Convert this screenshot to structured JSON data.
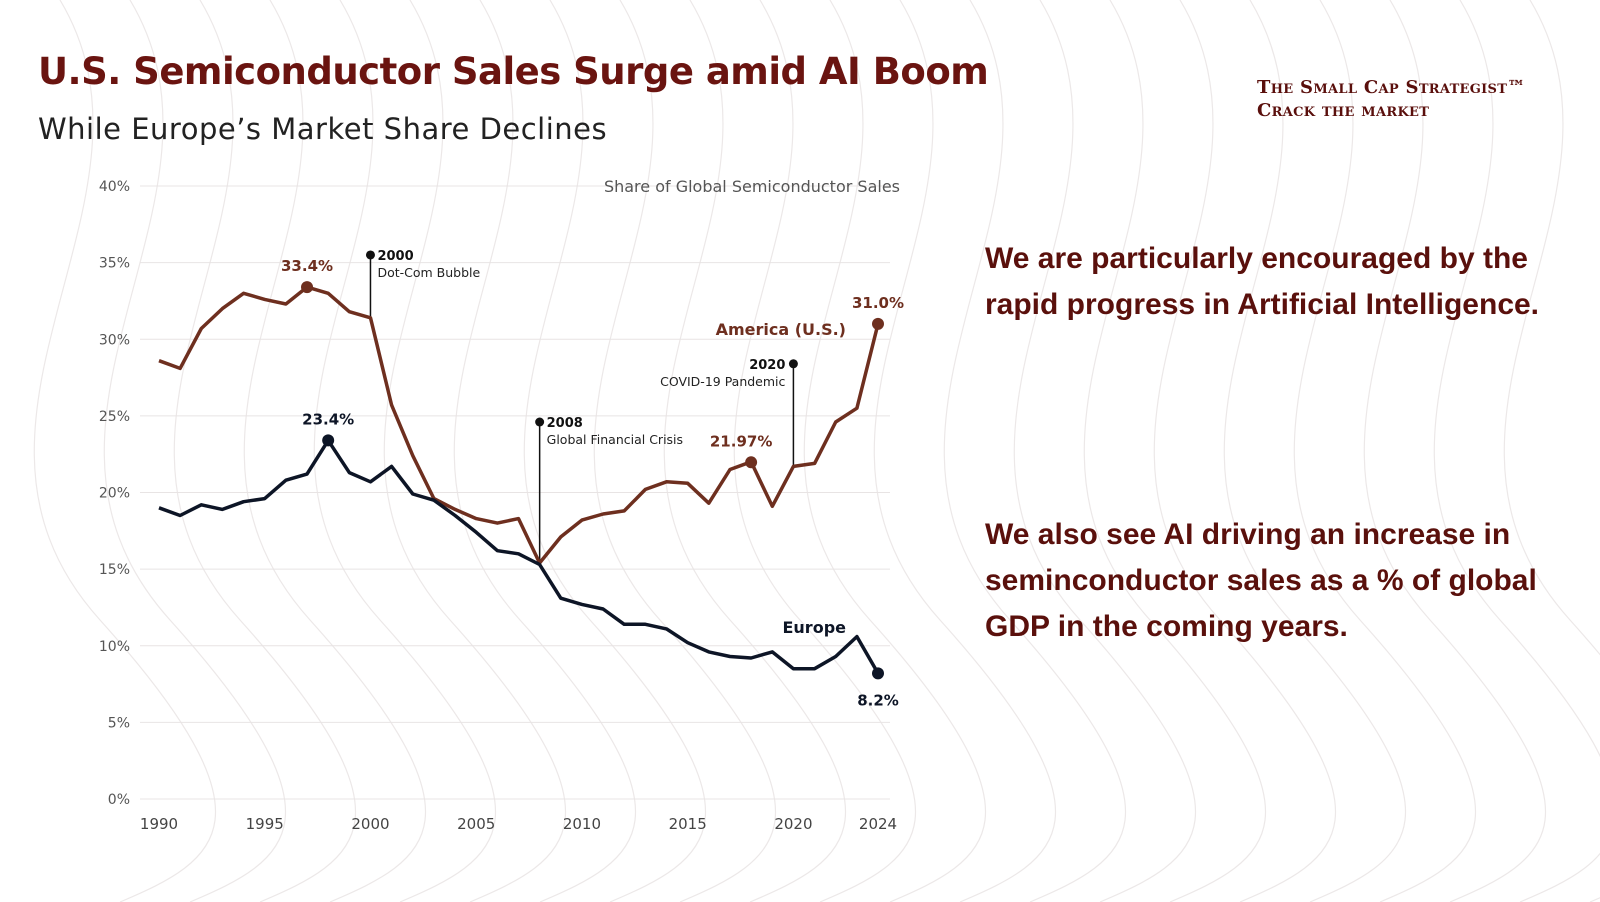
{
  "header": {
    "title": "U.S. Semiconductor Sales Surge amid AI Boom",
    "subtitle": "While Europe’s Market Share Declines"
  },
  "brand": {
    "name": "The Small Cap Strategist™",
    "tagline": "Crack the market"
  },
  "commentary": [
    "We are particularly encouraged by the rapid progress in Artificial Intelligence.",
    "We also see AI driving an increase in seminconductor sales as a % of global GDP in the coming years."
  ],
  "colors": {
    "us": "#6e2f1f",
    "europe": "#0d1526",
    "text": "#5a100c",
    "grid": "#e8e4e4"
  },
  "chart_data": {
    "type": "line",
    "title": "Share of Global Semiconductor Sales",
    "xlabel": "",
    "ylabel": "",
    "ylim": [
      0,
      40
    ],
    "xlim": [
      1990,
      2024
    ],
    "grid": true,
    "yticks": [
      0,
      5,
      10,
      15,
      20,
      25,
      30,
      35,
      40
    ],
    "ytick_labels": [
      "0%",
      "5%",
      "10%",
      "15%",
      "20%",
      "25%",
      "30%",
      "35%",
      "40%"
    ],
    "xticks": [
      1990,
      1995,
      2000,
      2005,
      2010,
      2015,
      2020,
      2024
    ],
    "xtick_labels": [
      "1990",
      "1995",
      "2000",
      "2005",
      "2010",
      "2015",
      "2020",
      "2024"
    ],
    "x": [
      1990,
      1991,
      1992,
      1993,
      1994,
      1995,
      1996,
      1997,
      1998,
      1999,
      2000,
      2001,
      2002,
      2003,
      2004,
      2005,
      2006,
      2007,
      2008,
      2009,
      2010,
      2011,
      2012,
      2013,
      2014,
      2015,
      2016,
      2017,
      2018,
      2019,
      2020,
      2021,
      2022,
      2023,
      2024
    ],
    "series": [
      {
        "name": "America (U.S.)",
        "values": [
          28.6,
          28.1,
          30.7,
          32.0,
          33.0,
          32.6,
          32.3,
          33.4,
          33.0,
          31.8,
          31.4,
          25.7,
          22.4,
          19.6,
          18.9,
          18.3,
          18.0,
          18.3,
          15.4,
          17.1,
          18.2,
          18.6,
          18.8,
          20.2,
          20.7,
          20.6,
          19.3,
          21.5,
          22.0,
          19.1,
          21.7,
          21.9,
          24.6,
          25.5,
          31.0
        ]
      },
      {
        "name": "Europe",
        "values": [
          19.0,
          18.5,
          19.2,
          18.9,
          19.4,
          19.6,
          20.8,
          21.2,
          23.4,
          21.3,
          20.7,
          21.7,
          19.9,
          19.5,
          18.5,
          17.4,
          16.2,
          16.0,
          15.3,
          13.1,
          12.7,
          12.4,
          11.4,
          11.4,
          11.1,
          10.2,
          9.6,
          9.3,
          9.2,
          9.6,
          8.5,
          8.5,
          9.3,
          10.6,
          8.2
        ]
      }
    ],
    "point_labels": [
      {
        "series": 0,
        "x": 1997,
        "y": 33.4,
        "text": "33.4%"
      },
      {
        "series": 0,
        "x": 2018,
        "y": 21.97,
        "text": "21.97%"
      },
      {
        "series": 0,
        "x": 2024,
        "y": 31.0,
        "text": "31.0%"
      },
      {
        "series": 1,
        "x": 1998,
        "y": 23.4,
        "text": "23.4%"
      },
      {
        "series": 1,
        "x": 2024,
        "y": 8.2,
        "text": "8.2%"
      }
    ],
    "annotations": [
      {
        "x": 2000,
        "year": "2000",
        "text": "Dot-Com Bubble",
        "y_top": 35.5,
        "y_bottom": 31.4
      },
      {
        "x": 2008,
        "year": "2008",
        "text": "Global Financial Crisis",
        "y_top": 24.6,
        "y_bottom": 15.4
      },
      {
        "x": 2020,
        "year": "2020",
        "text": "COVID-19 Pandemic",
        "y_top": 28.4,
        "y_bottom": 21.7
      }
    ]
  }
}
